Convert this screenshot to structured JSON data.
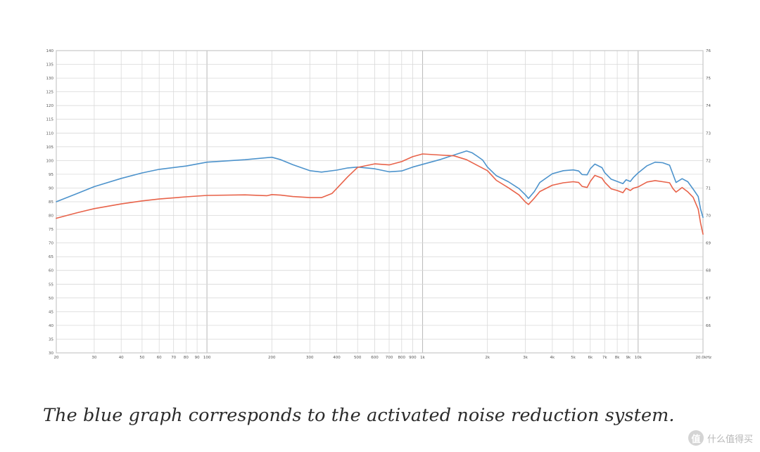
{
  "caption": "The blue graph corresponds to the activated noise reduction system.",
  "watermark": {
    "logo": "值",
    "text": "什么值得买"
  },
  "colors": {
    "blue": "#4d93cc",
    "red": "#e8634a",
    "grid": "#d9d9d9",
    "frame": "#c8c8c8"
  },
  "chart_data": {
    "type": "line",
    "title": "",
    "xlabel": "",
    "ylabel": "",
    "x_scale": "log",
    "xlim": [
      20,
      20000
    ],
    "ylim": [
      30,
      140
    ],
    "y2lim": [
      65,
      76
    ],
    "x_ticks": [
      {
        "v": 20,
        "t": "20"
      },
      {
        "v": 30,
        "t": "30"
      },
      {
        "v": 40,
        "t": "40"
      },
      {
        "v": 50,
        "t": "50"
      },
      {
        "v": 60,
        "t": "60"
      },
      {
        "v": 70,
        "t": "70"
      },
      {
        "v": 80,
        "t": "80"
      },
      {
        "v": 90,
        "t": "90"
      },
      {
        "v": 100,
        "t": "100"
      },
      {
        "v": 200,
        "t": "200"
      },
      {
        "v": 300,
        "t": "300"
      },
      {
        "v": 400,
        "t": "400"
      },
      {
        "v": 500,
        "t": "500"
      },
      {
        "v": 600,
        "t": "600"
      },
      {
        "v": 700,
        "t": "700"
      },
      {
        "v": 800,
        "t": "800"
      },
      {
        "v": 900,
        "t": "900"
      },
      {
        "v": 1000,
        "t": "1k"
      },
      {
        "v": 2000,
        "t": "2k"
      },
      {
        "v": 3000,
        "t": "3k"
      },
      {
        "v": 4000,
        "t": "4k"
      },
      {
        "v": 5000,
        "t": "5k"
      },
      {
        "v": 6000,
        "t": "6k"
      },
      {
        "v": 7000,
        "t": "7k"
      },
      {
        "v": 8000,
        "t": "8k"
      },
      {
        "v": 9000,
        "t": "9k"
      },
      {
        "v": 10000,
        "t": "10k"
      },
      {
        "v": 20000,
        "t": "20.0kHz"
      }
    ],
    "y_ticks": [
      30,
      35,
      40,
      45,
      50,
      55,
      60,
      65,
      70,
      75,
      80,
      85,
      90,
      95,
      100,
      105,
      110,
      115,
      120,
      125,
      130,
      135,
      140
    ],
    "y2_ticks": [
      66,
      67,
      68,
      69,
      70,
      71,
      72,
      73,
      74,
      75,
      76
    ],
    "series": [
      {
        "color": "blue",
        "points": [
          [
            20,
            85
          ],
          [
            25,
            88
          ],
          [
            30,
            90.5
          ],
          [
            40,
            93.5
          ],
          [
            50,
            95.5
          ],
          [
            60,
            96.8
          ],
          [
            80,
            98
          ],
          [
            100,
            99.4
          ],
          [
            150,
            100.3
          ],
          [
            200,
            101.2
          ],
          [
            220,
            100.3
          ],
          [
            250,
            98.5
          ],
          [
            300,
            96.3
          ],
          [
            340,
            95.8
          ],
          [
            400,
            96.5
          ],
          [
            450,
            97.3
          ],
          [
            500,
            97.6
          ],
          [
            600,
            97
          ],
          [
            700,
            95.9
          ],
          [
            800,
            96.2
          ],
          [
            900,
            97.6
          ],
          [
            1000,
            98.6
          ],
          [
            1200,
            100.3
          ],
          [
            1400,
            102
          ],
          [
            1600,
            103.5
          ],
          [
            1700,
            102.8
          ],
          [
            1800,
            101.5
          ],
          [
            1900,
            100.2
          ],
          [
            2000,
            97.6
          ],
          [
            2200,
            94.5
          ],
          [
            2500,
            92.3
          ],
          [
            2800,
            89.8
          ],
          [
            3000,
            87.5
          ],
          [
            3100,
            86.2
          ],
          [
            3300,
            88.7
          ],
          [
            3500,
            92
          ],
          [
            4000,
            95.2
          ],
          [
            4500,
            96.3
          ],
          [
            5000,
            96.6
          ],
          [
            5300,
            96.2
          ],
          [
            5500,
            94.9
          ],
          [
            5800,
            94.8
          ],
          [
            6000,
            97
          ],
          [
            6300,
            98.7
          ],
          [
            6800,
            97.4
          ],
          [
            7000,
            95.6
          ],
          [
            7500,
            93.2
          ],
          [
            8000,
            92.4
          ],
          [
            8500,
            91.6
          ],
          [
            8800,
            93
          ],
          [
            9200,
            92.4
          ],
          [
            9500,
            93.8
          ],
          [
            10000,
            95.5
          ],
          [
            11000,
            98.1
          ],
          [
            12000,
            99.4
          ],
          [
            13000,
            99.2
          ],
          [
            14000,
            98.3
          ],
          [
            14500,
            95.1
          ],
          [
            15000,
            92
          ],
          [
            16000,
            93.4
          ],
          [
            17000,
            92.3
          ],
          [
            18000,
            89.6
          ],
          [
            19000,
            86.9
          ],
          [
            19500,
            82.3
          ],
          [
            20000,
            79.3
          ]
        ]
      },
      {
        "color": "red",
        "points": [
          [
            20,
            79
          ],
          [
            25,
            81
          ],
          [
            30,
            82.5
          ],
          [
            40,
            84.2
          ],
          [
            50,
            85.3
          ],
          [
            60,
            86
          ],
          [
            80,
            86.8
          ],
          [
            100,
            87.3
          ],
          [
            150,
            87.5
          ],
          [
            190,
            87.2
          ],
          [
            200,
            87.6
          ],
          [
            220,
            87.4
          ],
          [
            250,
            86.9
          ],
          [
            300,
            86.5
          ],
          [
            340,
            86.5
          ],
          [
            380,
            88
          ],
          [
            400,
            89.8
          ],
          [
            450,
            94.1
          ],
          [
            500,
            97.5
          ],
          [
            600,
            98.8
          ],
          [
            700,
            98.4
          ],
          [
            800,
            99.6
          ],
          [
            900,
            101.4
          ],
          [
            1000,
            102.4
          ],
          [
            1200,
            102
          ],
          [
            1400,
            101.7
          ],
          [
            1600,
            100.3
          ],
          [
            1800,
            98.2
          ],
          [
            2000,
            96.3
          ],
          [
            2200,
            92.8
          ],
          [
            2500,
            90.1
          ],
          [
            2800,
            87.5
          ],
          [
            3000,
            84.9
          ],
          [
            3100,
            84
          ],
          [
            3300,
            86.3
          ],
          [
            3500,
            88.7
          ],
          [
            4000,
            91
          ],
          [
            4500,
            91.9
          ],
          [
            5000,
            92.3
          ],
          [
            5300,
            92
          ],
          [
            5500,
            90.6
          ],
          [
            5800,
            90.2
          ],
          [
            6000,
            92.4
          ],
          [
            6300,
            94.6
          ],
          [
            6800,
            93.6
          ],
          [
            7000,
            92.1
          ],
          [
            7500,
            89.7
          ],
          [
            8000,
            89.1
          ],
          [
            8500,
            88.3
          ],
          [
            8800,
            89.9
          ],
          [
            9200,
            89.1
          ],
          [
            9500,
            89.9
          ],
          [
            10000,
            90.4
          ],
          [
            11000,
            92.2
          ],
          [
            12000,
            92.7
          ],
          [
            13000,
            92.3
          ],
          [
            14000,
            91.9
          ],
          [
            14500,
            89.8
          ],
          [
            15000,
            88.5
          ],
          [
            16000,
            90.2
          ],
          [
            17000,
            88.6
          ],
          [
            18000,
            86.6
          ],
          [
            19000,
            82.3
          ],
          [
            19500,
            77.2
          ],
          [
            20000,
            73.2
          ]
        ]
      }
    ]
  }
}
